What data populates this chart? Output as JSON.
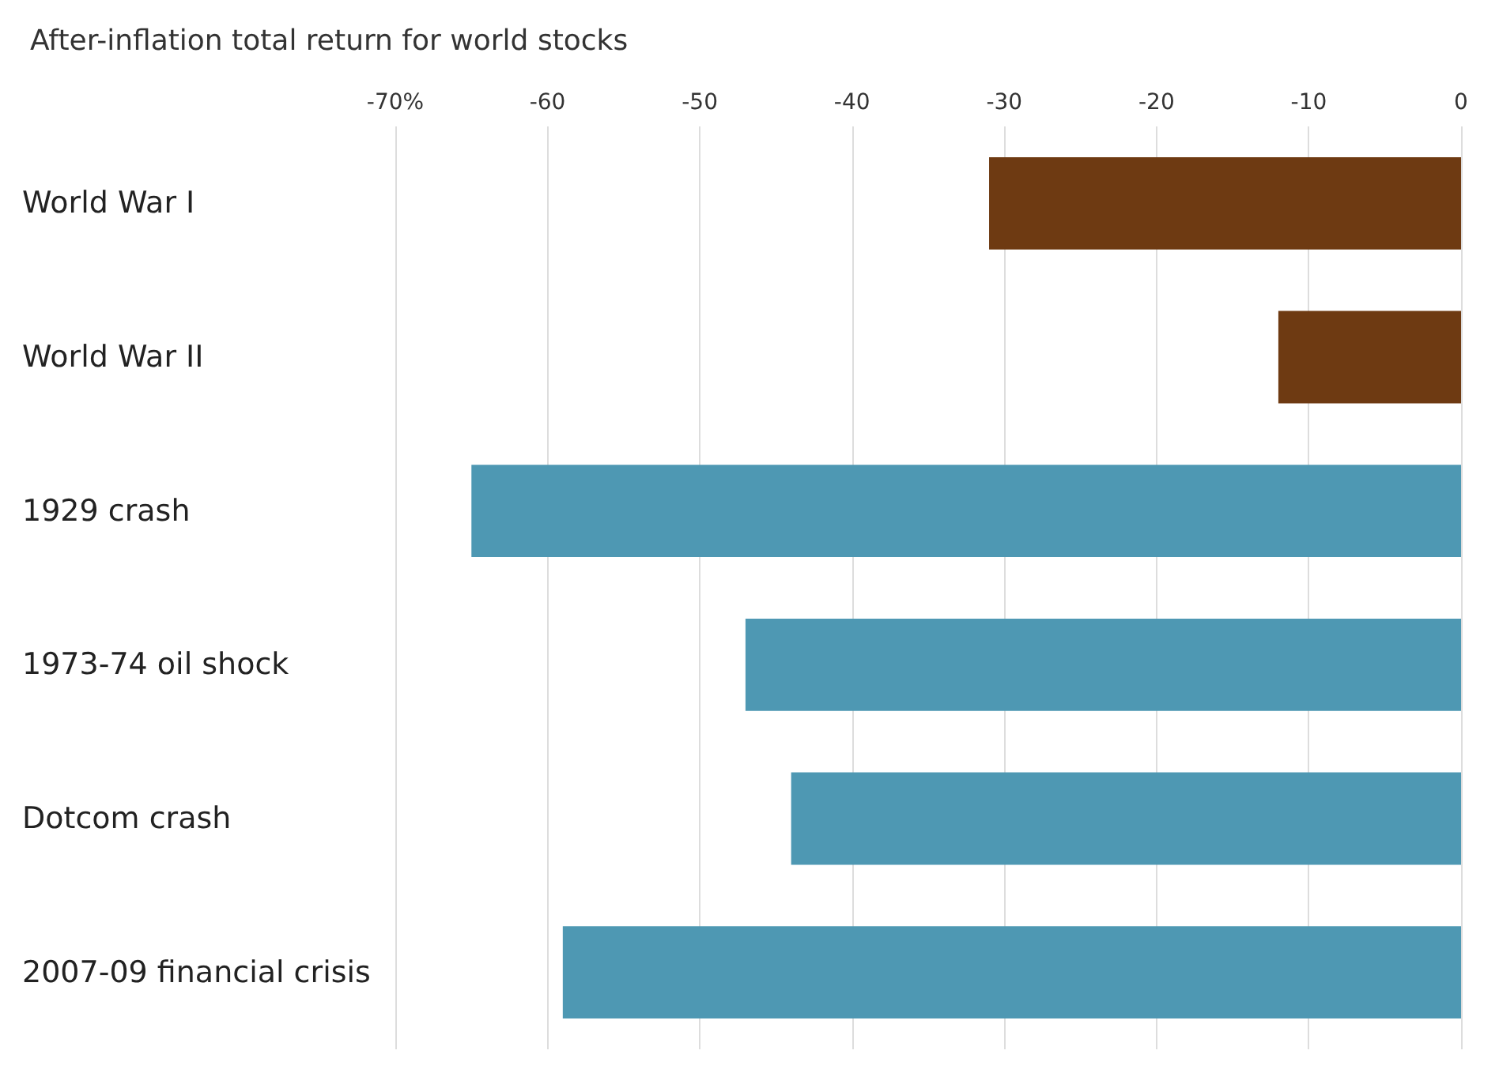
{
  "chart_data": {
    "type": "bar",
    "orientation": "horizontal",
    "title": "After-inflation total return for world stocks",
    "categories": [
      "World War I",
      "World War II",
      "1929 crash",
      "1973-74 oil shock",
      "Dotcom crash",
      "2007-09 financial crisis"
    ],
    "values": [
      -31,
      -12,
      -65,
      -47,
      -44,
      -59
    ],
    "colors": [
      "#6e3a12",
      "#6e3a12",
      "#4e98b3",
      "#4e98b3",
      "#4e98b3",
      "#4e98b3"
    ],
    "xlim": [
      -70,
      0
    ],
    "xticks": [
      {
        "value": -70,
        "label": "-70%"
      },
      -60,
      -50,
      -40,
      -30,
      -20,
      -10,
      0
    ],
    "grid": "x"
  }
}
